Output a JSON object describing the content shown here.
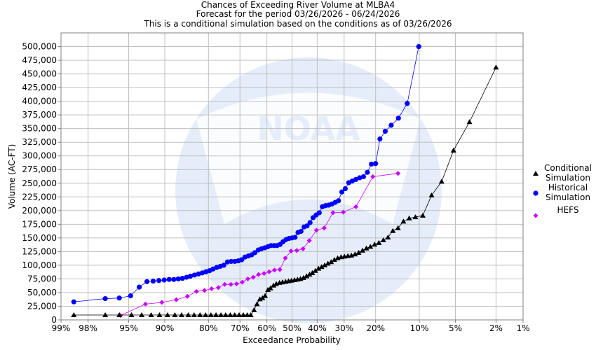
{
  "chart_data": {
    "type": "line",
    "title_lines": [
      "Chances of Exceeding River Volume at MLBA4",
      "Forecast for the period 03/26/2026 - 06/24/2026",
      "This is a conditional simulation based on the conditions as of 03/26/2026"
    ],
    "xlabel": "Exceedance Probability",
    "ylabel": "Volume (AC-FT)",
    "x_scale": "normal-probability (exceedance %)",
    "xlim": [
      99,
      1
    ],
    "ylim": [
      0,
      525000
    ],
    "x_ticks": [
      {
        "value": 99,
        "label": "99%"
      },
      {
        "value": 98,
        "label": "98%"
      },
      {
        "value": 95,
        "label": "95%"
      },
      {
        "value": 90,
        "label": "90%"
      },
      {
        "value": 80,
        "label": "80%"
      },
      {
        "value": 70,
        "label": "70%"
      },
      {
        "value": 60,
        "label": "60%"
      },
      {
        "value": 50,
        "label": "50%"
      },
      {
        "value": 40,
        "label": "40%"
      },
      {
        "value": 30,
        "label": "30%"
      },
      {
        "value": 20,
        "label": "20%"
      },
      {
        "value": 10,
        "label": "10%"
      },
      {
        "value": 5,
        "label": "5%"
      },
      {
        "value": 2,
        "label": "2%"
      },
      {
        "value": 1,
        "label": "1%"
      }
    ],
    "y_ticks": [
      {
        "value": 0,
        "label": "0"
      },
      {
        "value": 25000,
        "label": "25,000"
      },
      {
        "value": 50000,
        "label": "50,000"
      },
      {
        "value": 75000,
        "label": "75,000"
      },
      {
        "value": 100000,
        "label": "100,000"
      },
      {
        "value": 125000,
        "label": "125,000"
      },
      {
        "value": 150000,
        "label": "150,000"
      },
      {
        "value": 175000,
        "label": "175,000"
      },
      {
        "value": 200000,
        "label": "200,000"
      },
      {
        "value": 225000,
        "label": "225,000"
      },
      {
        "value": 250000,
        "label": "250,000"
      },
      {
        "value": 275000,
        "label": "275,000"
      },
      {
        "value": 300000,
        "label": "300,000"
      },
      {
        "value": 325000,
        "label": "325,000"
      },
      {
        "value": 350000,
        "label": "350,000"
      },
      {
        "value": 375000,
        "label": "375,000"
      },
      {
        "value": 400000,
        "label": "400,000"
      },
      {
        "value": 425000,
        "label": "425,000"
      },
      {
        "value": 450000,
        "label": "450,000"
      },
      {
        "value": 475000,
        "label": "475,000"
      },
      {
        "value": 500000,
        "label": "500,000"
      }
    ],
    "grid": true,
    "legend_position": "right",
    "series": [
      {
        "name": "Conditional Simulation",
        "legend_lines": [
          "Conditional",
          "Simulation"
        ],
        "color": "#000000",
        "marker": "triangle",
        "points": [
          [
            98.6,
            9000
          ],
          [
            97.0,
            9000
          ],
          [
            95.9,
            9000
          ],
          [
            94.7,
            9000
          ],
          [
            93.5,
            9000
          ],
          [
            92.2,
            9000
          ],
          [
            90.9,
            9000
          ],
          [
            89.5,
            9000
          ],
          [
            88.1,
            9000
          ],
          [
            86.7,
            9000
          ],
          [
            85.2,
            9000
          ],
          [
            83.8,
            9000
          ],
          [
            82.3,
            9000
          ],
          [
            80.8,
            9000
          ],
          [
            79.3,
            9000
          ],
          [
            77.8,
            9000
          ],
          [
            76.3,
            9000
          ],
          [
            74.8,
            9000
          ],
          [
            73.3,
            9000
          ],
          [
            71.8,
            9000
          ],
          [
            70.3,
            9000
          ],
          [
            68.8,
            9000
          ],
          [
            67.4,
            9000
          ],
          [
            66.1,
            9000
          ],
          [
            64.9,
            18000
          ],
          [
            63.8,
            29000
          ],
          [
            62.7,
            38000
          ],
          [
            61.7,
            40000
          ],
          [
            60.7,
            44000
          ],
          [
            59.6,
            55000
          ],
          [
            58.6,
            58000
          ],
          [
            57.4,
            63000
          ],
          [
            56.3,
            66000
          ],
          [
            55.0,
            68000
          ],
          [
            53.8,
            69000
          ],
          [
            52.6,
            70000
          ],
          [
            51.4,
            71000
          ],
          [
            50.2,
            72000
          ],
          [
            49.0,
            73000
          ],
          [
            47.8,
            74000
          ],
          [
            46.6,
            75000
          ],
          [
            45.4,
            77000
          ],
          [
            44.2,
            80000
          ],
          [
            43.0,
            83000
          ],
          [
            41.9,
            86000
          ],
          [
            40.7,
            90000
          ],
          [
            39.5,
            94000
          ],
          [
            38.3,
            97000
          ],
          [
            37.1,
            100000
          ],
          [
            35.9,
            103000
          ],
          [
            34.7,
            106000
          ],
          [
            33.5,
            110000
          ],
          [
            32.3,
            113000
          ],
          [
            31.1,
            115000
          ],
          [
            29.9,
            116000
          ],
          [
            28.7,
            117000
          ],
          [
            27.5,
            118000
          ],
          [
            26.3,
            120000
          ],
          [
            25.1,
            123000
          ],
          [
            23.9,
            127000
          ],
          [
            22.7,
            131000
          ],
          [
            21.5,
            134000
          ],
          [
            20.3,
            138000
          ],
          [
            19.1,
            141000
          ],
          [
            17.9,
            146000
          ],
          [
            16.7,
            151000
          ],
          [
            15.5,
            163000
          ],
          [
            14.3,
            168000
          ],
          [
            13.1,
            180000
          ],
          [
            11.9,
            186000
          ],
          [
            10.7,
            188000
          ],
          [
            9.4,
            191000
          ],
          [
            8.0,
            228000
          ],
          [
            6.6,
            253000
          ],
          [
            5.2,
            310000
          ],
          [
            3.7,
            362000
          ],
          [
            2.0,
            462000
          ]
        ]
      },
      {
        "name": "Historical Simulation",
        "legend_lines": [
          "Historical",
          "Simulation"
        ],
        "color": "#0000ff",
        "marker": "circle",
        "points": [
          [
            98.6,
            33000
          ],
          [
            97.0,
            39000
          ],
          [
            95.9,
            40000
          ],
          [
            94.8,
            44000
          ],
          [
            93.8,
            60000
          ],
          [
            92.8,
            70000
          ],
          [
            91.9,
            71000
          ],
          [
            91.0,
            72000
          ],
          [
            90.1,
            73000
          ],
          [
            89.2,
            74000
          ],
          [
            88.3,
            74000
          ],
          [
            87.4,
            75000
          ],
          [
            86.5,
            76000
          ],
          [
            85.6,
            78000
          ],
          [
            84.7,
            80000
          ],
          [
            83.7,
            82000
          ],
          [
            82.7,
            84000
          ],
          [
            81.7,
            86000
          ],
          [
            80.7,
            88000
          ],
          [
            79.7,
            90000
          ],
          [
            78.7,
            93000
          ],
          [
            77.6,
            96000
          ],
          [
            76.5,
            98000
          ],
          [
            75.4,
            100000
          ],
          [
            74.2,
            106000
          ],
          [
            73.0,
            107000
          ],
          [
            71.8,
            107000
          ],
          [
            70.6,
            108000
          ],
          [
            69.4,
            110000
          ],
          [
            68.2,
            115000
          ],
          [
            67.0,
            117000
          ],
          [
            65.8,
            119000
          ],
          [
            64.6,
            123000
          ],
          [
            63.3,
            128000
          ],
          [
            62.1,
            130000
          ],
          [
            60.8,
            132000
          ],
          [
            59.6,
            134000
          ],
          [
            58.4,
            136000
          ],
          [
            57.2,
            136000
          ],
          [
            56.0,
            136000
          ],
          [
            54.8,
            138000
          ],
          [
            53.6,
            143000
          ],
          [
            52.4,
            147000
          ],
          [
            51.2,
            149000
          ],
          [
            50.0,
            150000
          ],
          [
            48.8,
            151000
          ],
          [
            47.6,
            160000
          ],
          [
            46.4,
            162000
          ],
          [
            45.2,
            170000
          ],
          [
            44.0,
            172000
          ],
          [
            42.8,
            178000
          ],
          [
            41.6,
            187000
          ],
          [
            40.4,
            192000
          ],
          [
            39.2,
            196000
          ],
          [
            38.0,
            207000
          ],
          [
            36.8,
            209000
          ],
          [
            35.6,
            210000
          ],
          [
            34.4,
            212000
          ],
          [
            33.2,
            215000
          ],
          [
            32.0,
            218000
          ],
          [
            30.8,
            234000
          ],
          [
            29.6,
            240000
          ],
          [
            28.4,
            251000
          ],
          [
            27.2,
            254000
          ],
          [
            26.0,
            257000
          ],
          [
            24.8,
            260000
          ],
          [
            23.6,
            262000
          ],
          [
            22.4,
            270000
          ],
          [
            21.2,
            285000
          ],
          [
            20.0,
            286000
          ],
          [
            18.8,
            331000
          ],
          [
            17.4,
            345000
          ],
          [
            15.9,
            356000
          ],
          [
            14.2,
            369000
          ],
          [
            12.3,
            396000
          ],
          [
            10.1,
            500000
          ]
        ]
      },
      {
        "name": "HEFS",
        "legend_lines": [
          "HEFS"
        ],
        "color": "#cc00ff",
        "marker": "diamond",
        "points": [
          [
            95.8,
            8000
          ],
          [
            93.0,
            29000
          ],
          [
            90.5,
            32000
          ],
          [
            87.8,
            37000
          ],
          [
            85.4,
            43000
          ],
          [
            83.2,
            52000
          ],
          [
            81.1,
            54000
          ],
          [
            79.1,
            57000
          ],
          [
            77.1,
            59000
          ],
          [
            75.1,
            65000
          ],
          [
            73.1,
            65000
          ],
          [
            71.2,
            66000
          ],
          [
            69.2,
            69000
          ],
          [
            67.2,
            75000
          ],
          [
            65.2,
            78000
          ],
          [
            63.2,
            83000
          ],
          [
            61.1,
            85000
          ],
          [
            59.1,
            88000
          ],
          [
            57.0,
            91000
          ],
          [
            54.9,
            92000
          ],
          [
            52.7,
            113000
          ],
          [
            50.4,
            126000
          ],
          [
            48.1,
            127000
          ],
          [
            45.6,
            130000
          ],
          [
            43.1,
            145000
          ],
          [
            40.3,
            164000
          ],
          [
            37.3,
            168000
          ],
          [
            34.0,
            196000
          ],
          [
            30.3,
            197000
          ],
          [
            26.0,
            207000
          ],
          [
            20.8,
            262000
          ],
          [
            14.3,
            268000
          ]
        ]
      }
    ]
  }
}
